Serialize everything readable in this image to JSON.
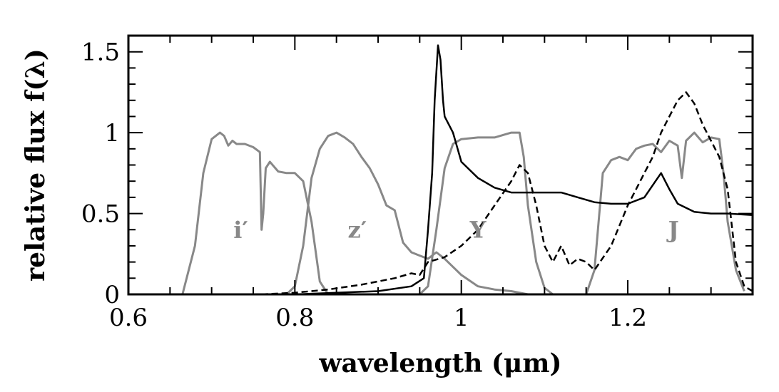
{
  "chart_data": {
    "type": "line",
    "xlabel": "wavelength (μm)",
    "ylabel": "relative flux f(λ)",
    "xlim": [
      0.6,
      1.35
    ],
    "ylim": [
      0,
      1.6
    ],
    "grid": false,
    "x_ticks": [
      0.6,
      0.8,
      1.0,
      1.2
    ],
    "x_tick_labels": [
      "0.6",
      "0.8",
      "1",
      "1.2"
    ],
    "y_ticks": [
      0,
      0.5,
      1.0,
      1.5
    ],
    "y_tick_labels": [
      "0",
      "0.5",
      "1",
      "1.5"
    ],
    "filter_color": "#888888",
    "spectrum_color": "#000000",
    "filters": [
      {
        "label": "i′",
        "label_pos": [
          0.735,
          0.35
        ],
        "x": [
          0.665,
          0.68,
          0.69,
          0.7,
          0.71,
          0.715,
          0.72,
          0.725,
          0.73,
          0.74,
          0.75,
          0.758,
          0.76,
          0.762,
          0.765,
          0.77,
          0.78,
          0.79,
          0.8,
          0.81,
          0.82,
          0.83,
          0.84
        ],
        "y": [
          0.0,
          0.3,
          0.75,
          0.96,
          1.0,
          0.98,
          0.92,
          0.95,
          0.93,
          0.93,
          0.91,
          0.88,
          0.4,
          0.5,
          0.78,
          0.82,
          0.76,
          0.75,
          0.75,
          0.7,
          0.45,
          0.08,
          0.0
        ]
      },
      {
        "label": "z′",
        "label_pos": [
          0.875,
          0.35
        ],
        "x": [
          0.79,
          0.8,
          0.81,
          0.82,
          0.83,
          0.84,
          0.85,
          0.86,
          0.87,
          0.88,
          0.89,
          0.9,
          0.91,
          0.92,
          0.93,
          0.94,
          0.95,
          0.96,
          0.97,
          0.98,
          1.0,
          1.02,
          1.04,
          1.06,
          1.08
        ],
        "y": [
          0.0,
          0.05,
          0.3,
          0.72,
          0.9,
          0.98,
          1.0,
          0.97,
          0.93,
          0.85,
          0.78,
          0.68,
          0.55,
          0.52,
          0.32,
          0.26,
          0.24,
          0.22,
          0.26,
          0.22,
          0.12,
          0.05,
          0.03,
          0.02,
          0.0
        ]
      },
      {
        "label": "Y",
        "label_pos": [
          1.02,
          0.35
        ],
        "x": [
          0.95,
          0.96,
          0.97,
          0.98,
          0.99,
          1.0,
          1.02,
          1.04,
          1.06,
          1.07,
          1.075,
          1.08,
          1.09,
          1.1,
          1.11
        ],
        "y": [
          0.0,
          0.05,
          0.4,
          0.78,
          0.93,
          0.96,
          0.97,
          0.97,
          1.0,
          1.0,
          0.85,
          0.55,
          0.2,
          0.04,
          0.0
        ]
      },
      {
        "label": "J",
        "label_pos": [
          1.255,
          0.35
        ],
        "x": [
          1.15,
          1.16,
          1.17,
          1.18,
          1.19,
          1.2,
          1.21,
          1.22,
          1.23,
          1.24,
          1.25,
          1.26,
          1.265,
          1.27,
          1.28,
          1.29,
          1.3,
          1.31,
          1.315,
          1.32,
          1.33,
          1.34
        ],
        "y": [
          0.0,
          0.15,
          0.75,
          0.83,
          0.85,
          0.83,
          0.9,
          0.92,
          0.93,
          0.88,
          0.95,
          0.92,
          0.72,
          0.95,
          1.0,
          0.94,
          0.97,
          0.96,
          0.75,
          0.45,
          0.15,
          0.02
        ]
      }
    ],
    "spectra": [
      {
        "style": "solid",
        "x": [
          0.76,
          0.8,
          0.85,
          0.9,
          0.94,
          0.955,
          0.96,
          0.965,
          0.968,
          0.972,
          0.975,
          0.978,
          0.98,
          0.985,
          0.99,
          1.0,
          1.02,
          1.04,
          1.06,
          1.08,
          1.1,
          1.12,
          1.14,
          1.16,
          1.18,
          1.2,
          1.22,
          1.24,
          1.25,
          1.26,
          1.28,
          1.3,
          1.32,
          1.35
        ],
        "y": [
          0.0,
          0.0,
          0.01,
          0.02,
          0.05,
          0.1,
          0.4,
          0.75,
          1.2,
          1.54,
          1.45,
          1.2,
          1.1,
          1.05,
          1.0,
          0.82,
          0.72,
          0.66,
          0.63,
          0.63,
          0.63,
          0.63,
          0.6,
          0.57,
          0.56,
          0.56,
          0.6,
          0.75,
          0.65,
          0.56,
          0.51,
          0.5,
          0.5,
          0.49
        ]
      },
      {
        "style": "dashed",
        "x": [
          0.76,
          0.8,
          0.84,
          0.88,
          0.92,
          0.94,
          0.95,
          0.96,
          0.98,
          1.0,
          1.02,
          1.04,
          1.06,
          1.07,
          1.08,
          1.09,
          1.1,
          1.11,
          1.12,
          1.13,
          1.14,
          1.15,
          1.16,
          1.18,
          1.2,
          1.22,
          1.23,
          1.24,
          1.25,
          1.26,
          1.27,
          1.28,
          1.29,
          1.3,
          1.31,
          1.32,
          1.33,
          1.34,
          1.35
        ],
        "y": [
          0.0,
          0.01,
          0.03,
          0.06,
          0.1,
          0.13,
          0.12,
          0.2,
          0.23,
          0.3,
          0.4,
          0.55,
          0.7,
          0.8,
          0.75,
          0.55,
          0.3,
          0.2,
          0.3,
          0.18,
          0.22,
          0.2,
          0.15,
          0.3,
          0.55,
          0.75,
          0.85,
          1.0,
          1.1,
          1.2,
          1.25,
          1.18,
          1.05,
          0.95,
          0.85,
          0.65,
          0.2,
          0.05,
          0.02
        ]
      }
    ]
  }
}
